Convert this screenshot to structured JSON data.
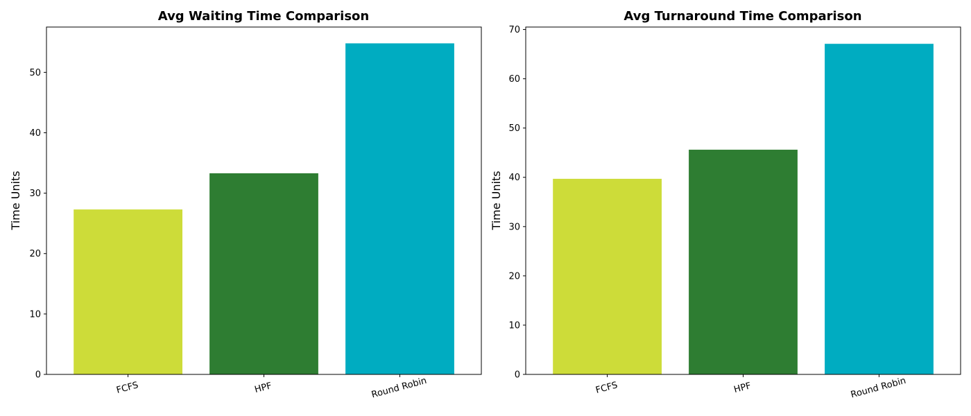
{
  "chart_data": [
    {
      "type": "bar",
      "title": "Avg Waiting Time Comparison",
      "xlabel": "",
      "ylabel": "Time Units",
      "categories": [
        "FCFS",
        "HPF",
        "Round Robin"
      ],
      "values": [
        27.3,
        33.3,
        54.8
      ],
      "colors": [
        "#CDDC39",
        "#2E7D32",
        "#00ACC1"
      ],
      "ylim": [
        0,
        57.5
      ],
      "yticks": [
        0,
        10,
        20,
        30,
        40,
        50
      ],
      "grid": false,
      "xtick_rotation": -15
    },
    {
      "type": "bar",
      "title": "Avg Turnaround Time Comparison",
      "xlabel": "",
      "ylabel": "Time Units",
      "categories": [
        "FCFS",
        "HPF",
        "Round Robin"
      ],
      "values": [
        39.7,
        45.6,
        67.1
      ],
      "colors": [
        "#CDDC39",
        "#2E7D32",
        "#00ACC1"
      ],
      "ylim": [
        0,
        70.5
      ],
      "yticks": [
        0,
        10,
        20,
        30,
        40,
        50,
        60,
        70
      ],
      "grid": false,
      "xtick_rotation": -15
    }
  ]
}
